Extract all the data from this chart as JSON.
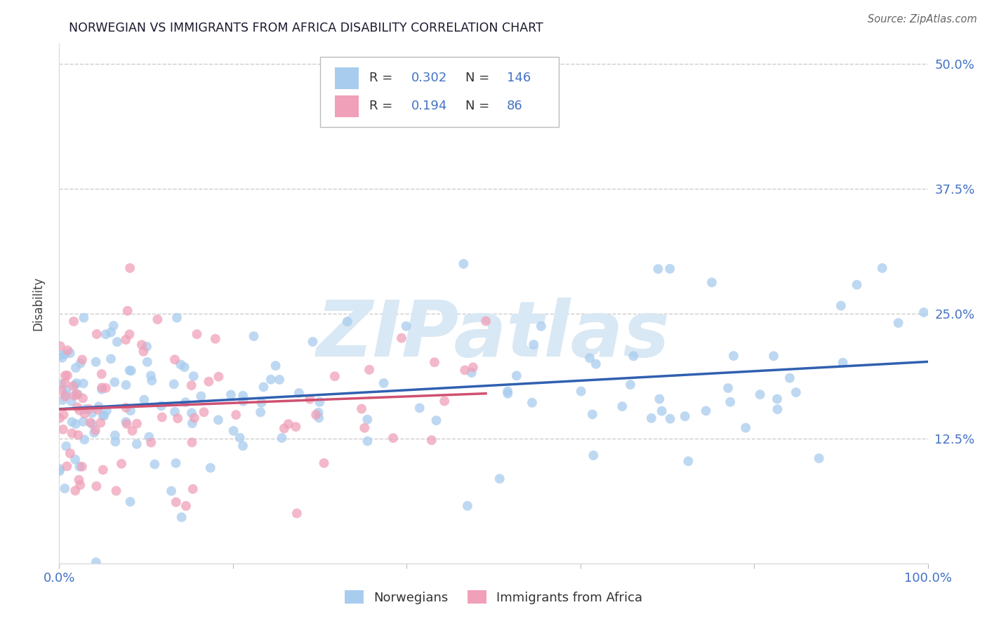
{
  "title": "NORWEGIAN VS IMMIGRANTS FROM AFRICA DISABILITY CORRELATION CHART",
  "source": "Source: ZipAtlas.com",
  "ylabel": "Disability",
  "xlim": [
    0,
    100
  ],
  "ylim": [
    0,
    52
  ],
  "yticks": [
    0,
    12.5,
    25.0,
    37.5,
    50.0
  ],
  "ytick_labels": [
    "",
    "12.5%",
    "25.0%",
    "37.5%",
    "50.0%"
  ],
  "norwegians_R": 0.302,
  "norwegians_N": 146,
  "immigrants_R": 0.194,
  "immigrants_N": 86,
  "blue_color": "#A8CCEE",
  "pink_color": "#F0A0B8",
  "blue_line_color": "#3060B0",
  "pink_line_color": "#D05070",
  "watermark_color": "#D8E8F4",
  "watermark_text": "ZIPatlas",
  "background_color": "#FFFFFF",
  "title_color": "#1a1a2e",
  "axis_label_color": "#4472C4",
  "right_tick_color": "#4472C4",
  "seed": 99
}
